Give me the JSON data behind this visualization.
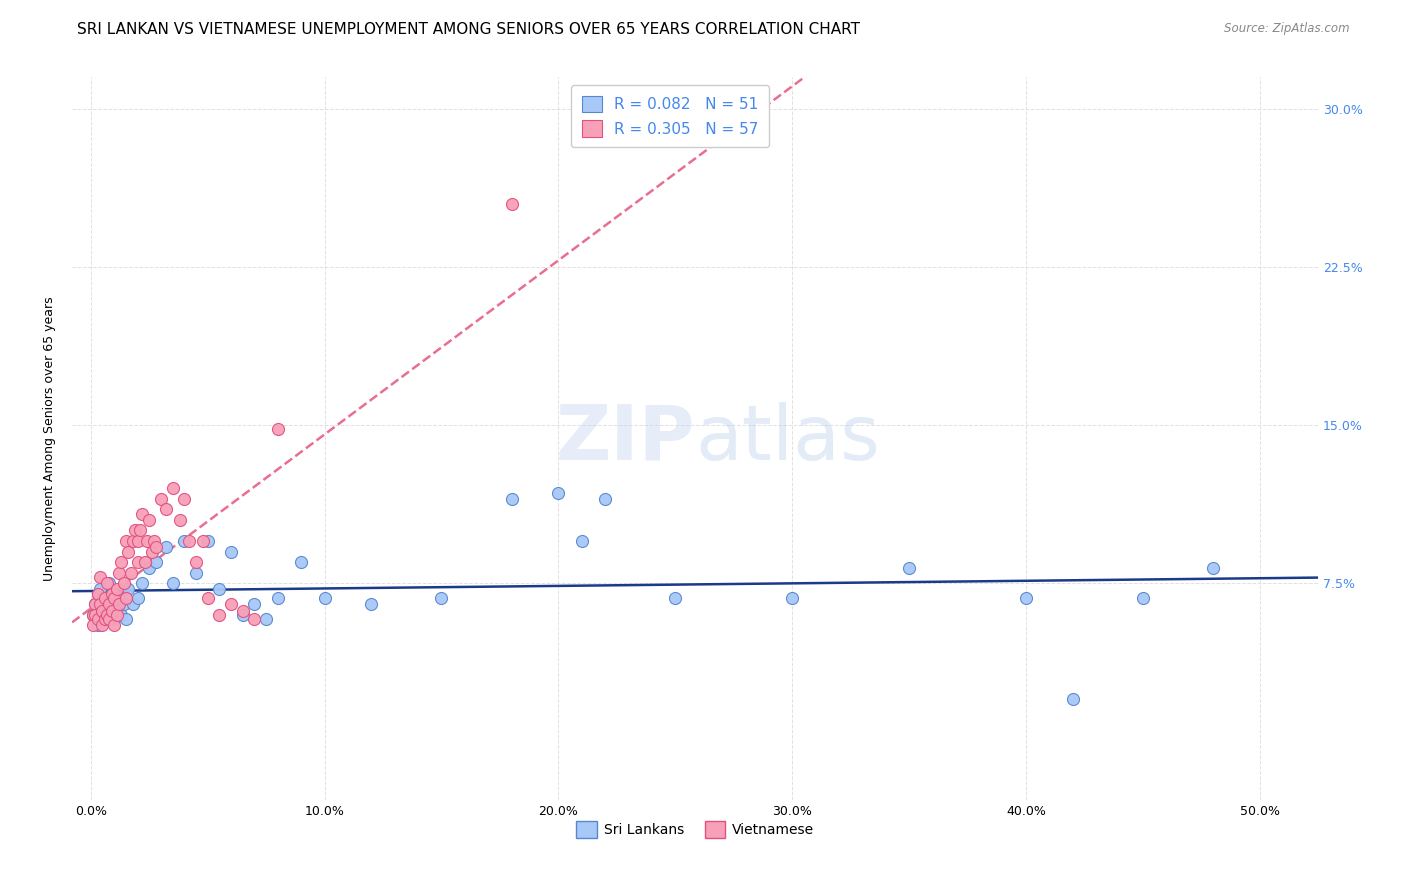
{
  "title": "SRI LANKAN VS VIETNAMESE UNEMPLOYMENT AMONG SENIORS OVER 65 YEARS CORRELATION CHART",
  "source": "Source: ZipAtlas.com",
  "xlabel_ticks": [
    "0.0%",
    "10.0%",
    "20.0%",
    "30.0%",
    "40.0%",
    "50.0%"
  ],
  "xlabel_vals": [
    0.0,
    0.1,
    0.2,
    0.3,
    0.4,
    0.5
  ],
  "ylabel_ticks": [
    "7.5%",
    "15.0%",
    "22.5%",
    "30.0%"
  ],
  "ylabel_vals": [
    0.075,
    0.15,
    0.225,
    0.3
  ],
  "ylabel_label": "Unemployment Among Seniors over 65 years",
  "xlim": [
    -0.008,
    0.525
  ],
  "ylim": [
    -0.028,
    0.315
  ],
  "watermark_zip": "ZIP",
  "watermark_atlas": "atlas",
  "background_color": "#ffffff",
  "grid_color": "#dddddd",
  "title_fontsize": 11,
  "axis_label_fontsize": 9,
  "tick_fontsize": 9,
  "legend_fontsize": 11,
  "right_tick_color": "#4488ee",
  "bottom_legend": [
    "Sri Lankans",
    "Vietnamese"
  ],
  "sri_lankans": {
    "color": "#a8c8f8",
    "edge_color": "#5588cc",
    "trendline_color": "#1a3a8a",
    "trendline_style": "-",
    "x": [
      0.001,
      0.002,
      0.003,
      0.003,
      0.004,
      0.004,
      0.005,
      0.005,
      0.006,
      0.007,
      0.008,
      0.008,
      0.009,
      0.01,
      0.011,
      0.012,
      0.013,
      0.014,
      0.015,
      0.016,
      0.018,
      0.02,
      0.022,
      0.025,
      0.028,
      0.032,
      0.035,
      0.04,
      0.045,
      0.05,
      0.055,
      0.06,
      0.065,
      0.07,
      0.075,
      0.08,
      0.09,
      0.1,
      0.12,
      0.15,
      0.18,
      0.2,
      0.21,
      0.22,
      0.25,
      0.3,
      0.35,
      0.4,
      0.42,
      0.45,
      0.48
    ],
    "y": [
      0.06,
      0.065,
      0.055,
      0.07,
      0.06,
      0.072,
      0.058,
      0.068,
      0.062,
      0.065,
      0.06,
      0.075,
      0.07,
      0.058,
      0.062,
      0.068,
      0.06,
      0.065,
      0.058,
      0.072,
      0.065,
      0.068,
      0.075,
      0.082,
      0.085,
      0.092,
      0.075,
      0.095,
      0.08,
      0.095,
      0.072,
      0.09,
      0.06,
      0.065,
      0.058,
      0.068,
      0.085,
      0.068,
      0.065,
      0.068,
      0.115,
      0.118,
      0.095,
      0.115,
      0.068,
      0.068,
      0.082,
      0.068,
      0.02,
      0.068,
      0.082
    ]
  },
  "vietnamese": {
    "color": "#f8a0b8",
    "edge_color": "#e05080",
    "trendline_color": "#e03060",
    "trendline_style": "--",
    "x": [
      0.001,
      0.001,
      0.002,
      0.002,
      0.003,
      0.003,
      0.004,
      0.004,
      0.005,
      0.005,
      0.006,
      0.006,
      0.007,
      0.007,
      0.008,
      0.008,
      0.009,
      0.009,
      0.01,
      0.01,
      0.011,
      0.011,
      0.012,
      0.012,
      0.013,
      0.014,
      0.015,
      0.015,
      0.016,
      0.017,
      0.018,
      0.019,
      0.02,
      0.02,
      0.021,
      0.022,
      0.023,
      0.024,
      0.025,
      0.026,
      0.027,
      0.028,
      0.03,
      0.032,
      0.035,
      0.038,
      0.04,
      0.042,
      0.045,
      0.048,
      0.05,
      0.055,
      0.06,
      0.065,
      0.07,
      0.08,
      0.18
    ],
    "y": [
      0.06,
      0.055,
      0.065,
      0.06,
      0.07,
      0.058,
      0.065,
      0.078,
      0.062,
      0.055,
      0.068,
      0.058,
      0.06,
      0.075,
      0.065,
      0.058,
      0.07,
      0.062,
      0.068,
      0.055,
      0.072,
      0.06,
      0.08,
      0.065,
      0.085,
      0.075,
      0.095,
      0.068,
      0.09,
      0.08,
      0.095,
      0.1,
      0.095,
      0.085,
      0.1,
      0.108,
      0.085,
      0.095,
      0.105,
      0.09,
      0.095,
      0.092,
      0.115,
      0.11,
      0.12,
      0.105,
      0.115,
      0.095,
      0.085,
      0.095,
      0.068,
      0.06,
      0.065,
      0.062,
      0.058,
      0.148,
      0.255
    ]
  }
}
